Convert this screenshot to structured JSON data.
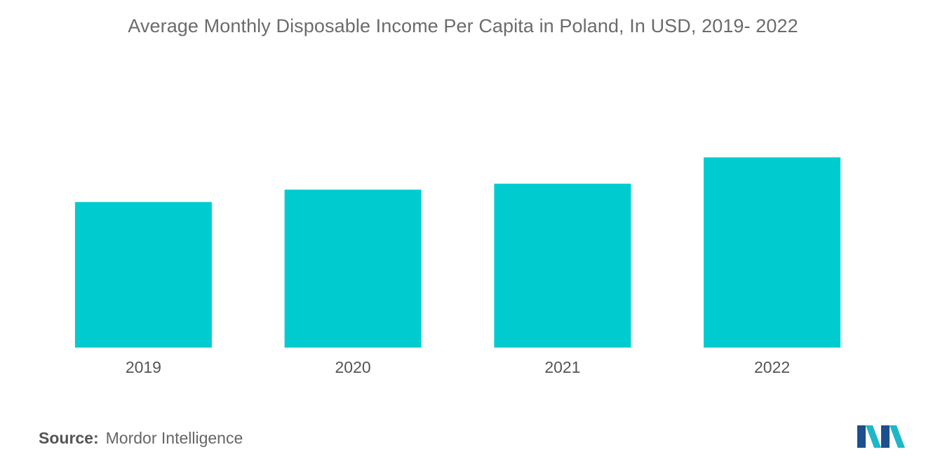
{
  "title": "Average Monthly Disposable Income Per Capita in Poland, In USD, 2019- 2022",
  "source": {
    "label": "Source:",
    "value": "Mordor Intelligence"
  },
  "logo": {
    "icon": "mordor-intelligence-logo-icon",
    "colors": [
      "#1fb7c7",
      "#1c4f8c"
    ]
  },
  "colors": {
    "bar": "#00ccd0",
    "title": "#6b6b6b",
    "tick": "#555555"
  },
  "chart_data": {
    "type": "bar",
    "title": "Average Monthly Disposable Income Per Capita in Poland, In USD, 2019- 2022",
    "categories": [
      "2019",
      "2020",
      "2021",
      "2022"
    ],
    "values": [
      540,
      586,
      608,
      706
    ],
    "xlabel": "",
    "ylabel": "",
    "ylim": [
      0,
      780
    ],
    "grid": false,
    "legend": "none",
    "y_axis_visible": false
  }
}
